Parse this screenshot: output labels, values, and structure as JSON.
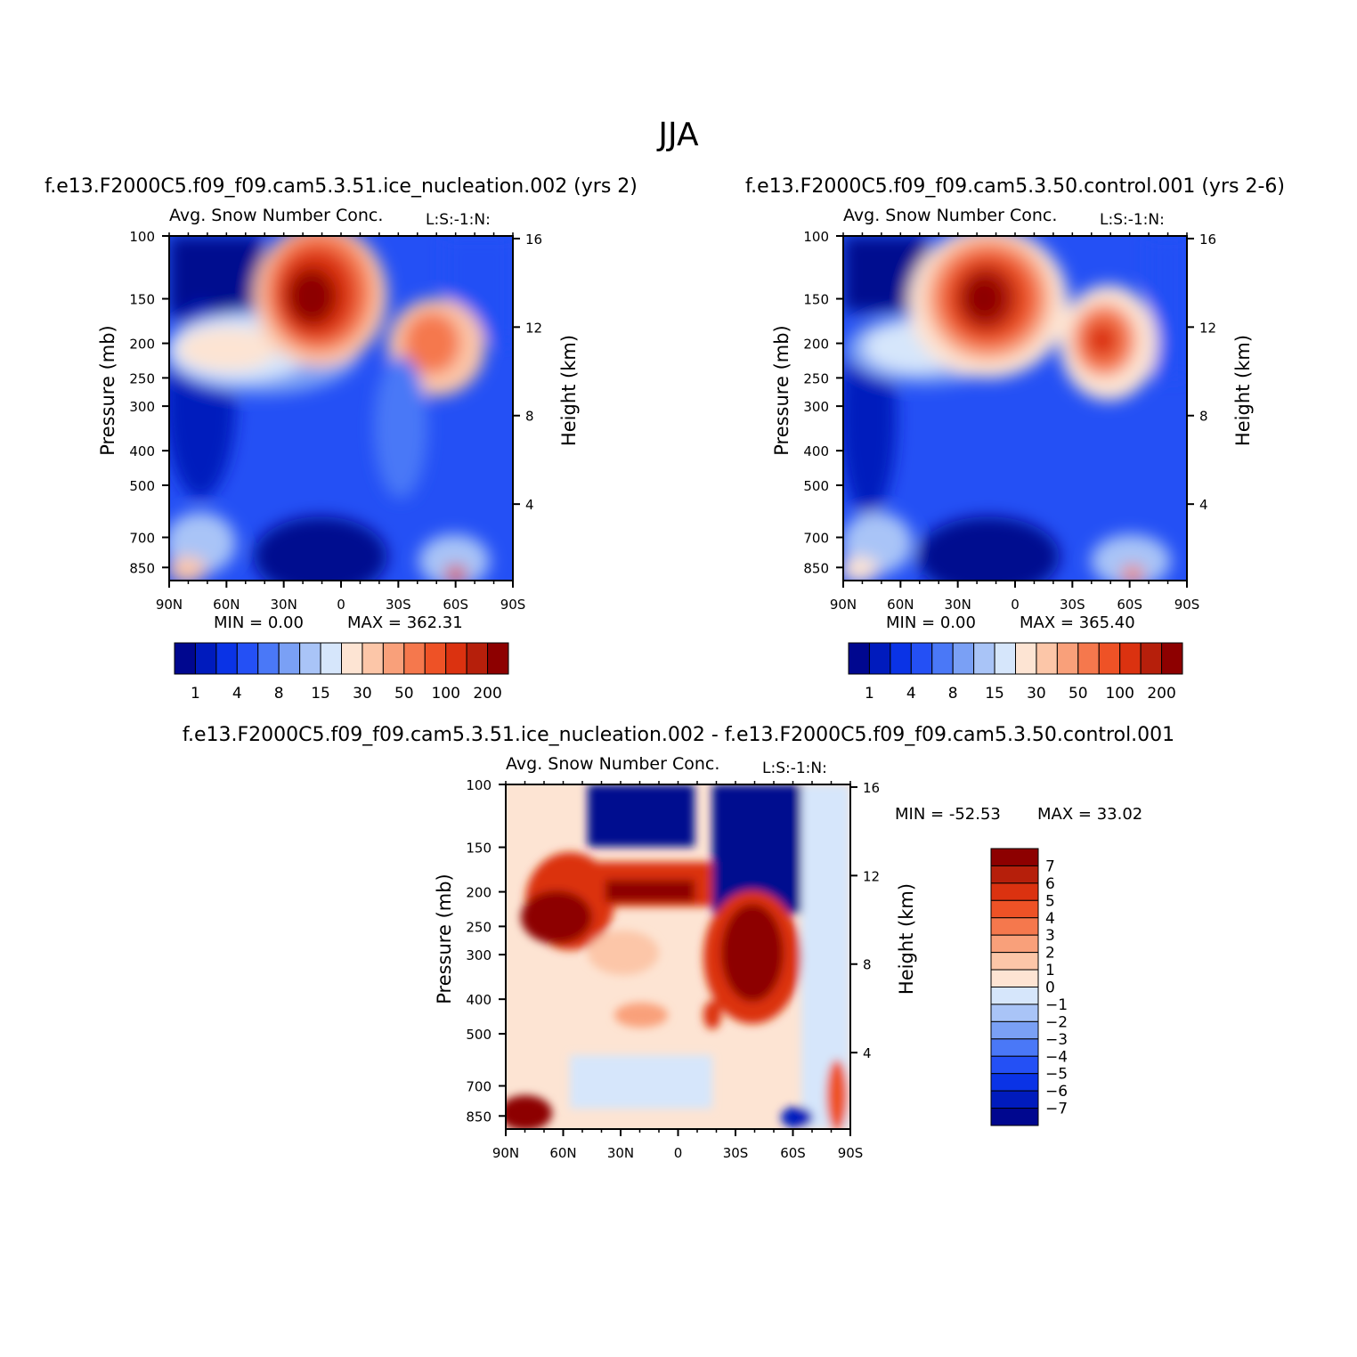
{
  "main_title": "JJA",
  "colors": {
    "abs_levels": [
      "#00078f",
      "#001bbd",
      "#0a33e6",
      "#2450f5",
      "#4a78f7",
      "#7aa0f5",
      "#a9c4f7",
      "#d6e6fb",
      "#fde4d3",
      "#fcc6a8",
      "#f9a07a",
      "#f5784d",
      "#ee5226",
      "#db3210",
      "#b61f0b",
      "#8d0000"
    ],
    "diff_levels": [
      "#00078f",
      "#001bbd",
      "#0a33e6",
      "#2450f5",
      "#4a78f7",
      "#7aa0f5",
      "#a9c4f7",
      "#d6e6fb",
      "#fde4d3",
      "#fcc6a8",
      "#f9a07a",
      "#f5784d",
      "#ee5226",
      "#db3210",
      "#b61f0b",
      "#8d0000"
    ]
  },
  "chart_data": [
    {
      "type": "heatmap",
      "case_title": "f.e13.F2000C5.f09_f09.cam5.3.51.ice_nucleation.002 (yrs 2)",
      "title": "Avg. Snow Number Conc.",
      "subtitle": "L:S:-1:N:",
      "xlabel": "",
      "ylabel": "Pressure (mb)",
      "ylabel_right": "Height (km)",
      "x_ticks": [
        "90N",
        "60N",
        "30N",
        "0",
        "30S",
        "60S",
        "90S"
      ],
      "y_ticks": [
        "100",
        "150",
        "200",
        "250",
        "300",
        "400",
        "500",
        "700",
        "850"
      ],
      "y_right_ticks": [
        "16",
        "12",
        "8",
        "4"
      ],
      "ylim": [
        100,
        850
      ],
      "min_text": "MIN =    0.00",
      "max_text": "MAX =  362.31",
      "min": 0.0,
      "max": 362.31,
      "colorbar_labels": [
        "1",
        "4",
        "8",
        "15",
        "30",
        "50",
        "100",
        "200"
      ],
      "features": [
        {
          "lat": -5,
          "p": 150,
          "value": 250,
          "desc": "upper tropospheric maximum near equator"
        },
        {
          "lat": -52,
          "p": 200,
          "value": 70,
          "desc": "southern mid-latitude maximum"
        },
        {
          "lat": 75,
          "p": 200,
          "value": 20,
          "desc": "northern high latitude band"
        },
        {
          "lat": 10,
          "p": 800,
          "value": 0.5,
          "desc": "lower tropospheric minimum in tropics"
        }
      ]
    },
    {
      "type": "heatmap",
      "case_title": "f.e13.F2000C5.f09_f09.cam5.3.50.control.001 (yrs 2-6)",
      "title": "Avg. Snow Number Conc.",
      "subtitle": "L:S:-1:N:",
      "xlabel": "",
      "ylabel": "Pressure (mb)",
      "ylabel_right": "Height (km)",
      "x_ticks": [
        "90N",
        "60N",
        "30N",
        "0",
        "30S",
        "60S",
        "90S"
      ],
      "y_ticks": [
        "100",
        "150",
        "200",
        "250",
        "300",
        "400",
        "500",
        "700",
        "850"
      ],
      "y_right_ticks": [
        "16",
        "12",
        "8",
        "4"
      ],
      "ylim": [
        100,
        850
      ],
      "min_text": "MIN =    0.00",
      "max_text": "MAX =  365.40",
      "min": 0.0,
      "max": 365.4,
      "colorbar_labels": [
        "1",
        "4",
        "8",
        "15",
        "30",
        "50",
        "100",
        "200"
      ],
      "features": [
        {
          "lat": 10,
          "p": 150,
          "value": 300,
          "desc": "upper tropospheric maximum near equator"
        },
        {
          "lat": -45,
          "p": 200,
          "value": 90,
          "desc": "southern mid-latitude maximum"
        },
        {
          "lat": 70,
          "p": 200,
          "value": 20,
          "desc": "northern high latitude band"
        },
        {
          "lat": 10,
          "p": 800,
          "value": 0.5,
          "desc": "lower tropospheric minimum in tropics"
        }
      ]
    },
    {
      "type": "heatmap",
      "case_title": "f.e13.F2000C5.f09_f09.cam5.3.51.ice_nucleation.002 - f.e13.F2000C5.f09_f09.cam5.3.50.control.001",
      "title": "Avg. Snow Number Conc.",
      "subtitle": "L:S:-1:N:",
      "xlabel": "",
      "ylabel": "Pressure (mb)",
      "ylabel_right": "Height (km)",
      "x_ticks": [
        "90N",
        "60N",
        "30N",
        "0",
        "30S",
        "60S",
        "90S"
      ],
      "y_ticks": [
        "100",
        "150",
        "200",
        "250",
        "300",
        "400",
        "500",
        "700",
        "850"
      ],
      "y_right_ticks": [
        "16",
        "12",
        "8",
        "4"
      ],
      "ylim": [
        100,
        850
      ],
      "min_text": "MIN = -52.53",
      "max_text": "MAX =   33.02",
      "min": -52.53,
      "max": 33.02,
      "colorbar_labels": [
        "7",
        "6",
        "5",
        "4",
        "3",
        "2",
        "1",
        "0",
        "-1",
        "-2",
        "-3",
        "-4",
        "-5",
        "-6",
        "-7"
      ],
      "features": [
        {
          "lat": 20,
          "p": 120,
          "value": -20,
          "desc": "negative difference top tropics"
        },
        {
          "lat": 70,
          "p": 240,
          "value": 10,
          "desc": "positive difference band"
        },
        {
          "lat": -35,
          "p": 320,
          "value": 15,
          "desc": "strong positive southern mid-latitudes"
        },
        {
          "lat": -40,
          "p": 130,
          "value": -20,
          "desc": "negative upper southern"
        }
      ]
    }
  ]
}
